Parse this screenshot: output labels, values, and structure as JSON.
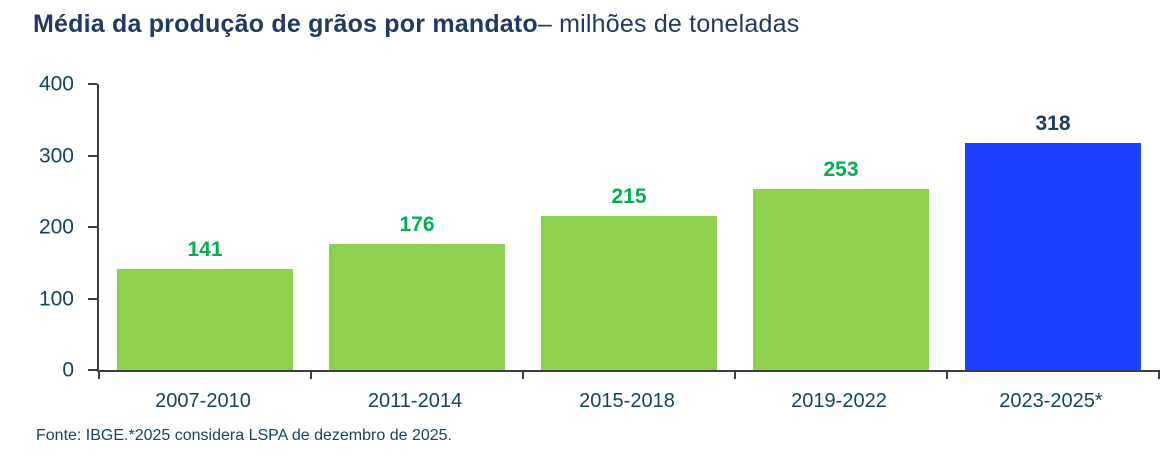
{
  "title": {
    "bold": "Média da produção de grãos por mandato",
    "regular": "– milhões de toneladas"
  },
  "footer": "Fonte: IBGE.*2025 considera LSPA de dezembro de 2025.",
  "colors": {
    "title_navy": "#203A60",
    "axis_text": "#17455C",
    "axis_line": "#404040",
    "bar_green": "#8FD04F",
    "bar_blue": "#1B3FFC",
    "label_green": "#00B050",
    "label_navy": "#203A60",
    "background": "#FFFFFF"
  },
  "chart_data": {
    "type": "bar",
    "title": "Média da produção de grãos por mandato – milhões de toneladas",
    "categories": [
      "2007-2010",
      "2011-2014",
      "2015-2018",
      "2019-2022",
      "2023-2025*"
    ],
    "values": [
      141,
      176,
      215,
      253,
      318
    ],
    "bar_colors": [
      "#8FD04F",
      "#8FD04F",
      "#8FD04F",
      "#8FD04F",
      "#1B3FFC"
    ],
    "label_colors": [
      "#00B050",
      "#00B050",
      "#00B050",
      "#00B050",
      "#203A60"
    ],
    "xlabel": "",
    "ylabel": "milhões de toneladas",
    "ylim": [
      0,
      400
    ],
    "yticks": [
      0,
      100,
      200,
      300,
      400
    ],
    "grid": false,
    "legend": false,
    "annotation": "Fonte: IBGE.*2025 considera LSPA de dezembro de 2025."
  }
}
